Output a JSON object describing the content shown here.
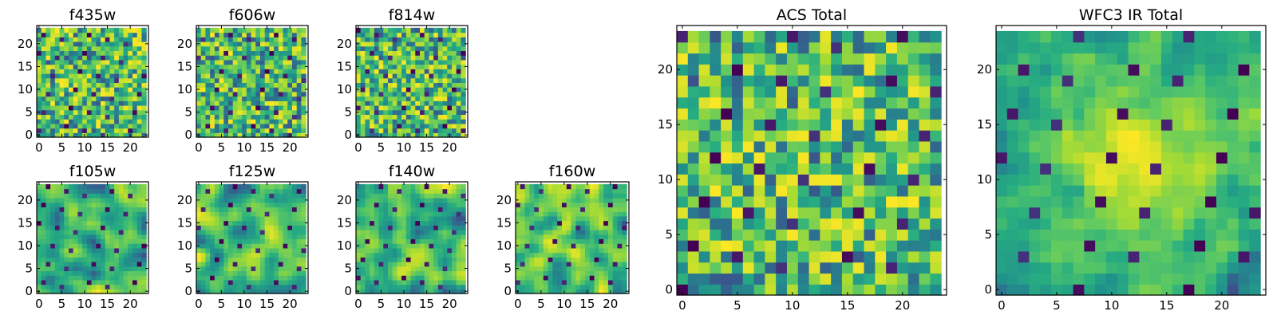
{
  "figure": {
    "colormap": "viridis",
    "colors": {
      "low": "#440154",
      "mid": "#21918c",
      "high": "#fde725",
      "frame": "#000000",
      "background": "#ffffff"
    },
    "panels": [
      {
        "id": "f435w",
        "title": "f435w",
        "grid": 24,
        "seed": 11,
        "smooth": 0,
        "center_bright": 0,
        "xticks": [
          "0",
          "5",
          "10",
          "15",
          "20"
        ],
        "yticks": [
          "0",
          "5",
          "10",
          "15",
          "20"
        ]
      },
      {
        "id": "f606w",
        "title": "f606w",
        "grid": 24,
        "seed": 23,
        "smooth": 0,
        "center_bright": 0,
        "xticks": [
          "0",
          "5",
          "10",
          "15",
          "20"
        ],
        "yticks": [
          "0",
          "5",
          "10",
          "15",
          "20"
        ]
      },
      {
        "id": "f814w",
        "title": "f814w",
        "grid": 24,
        "seed": 37,
        "smooth": 0,
        "center_bright": 0,
        "xticks": [
          "0",
          "5",
          "10",
          "15",
          "20"
        ],
        "yticks": [
          "0",
          "5",
          "10",
          "15",
          "20"
        ]
      },
      {
        "id": "f105w",
        "title": "f105w",
        "grid": 24,
        "seed": 41,
        "smooth": 2,
        "center_bright": 0,
        "xticks": [
          "0",
          "5",
          "10",
          "15",
          "20"
        ],
        "yticks": [
          "0",
          "5",
          "10",
          "15",
          "20"
        ]
      },
      {
        "id": "f125w",
        "title": "f125w",
        "grid": 24,
        "seed": 53,
        "smooth": 2,
        "center_bright": 0,
        "xticks": [
          "0",
          "5",
          "10",
          "15",
          "20"
        ],
        "yticks": [
          "0",
          "5",
          "10",
          "15",
          "20"
        ]
      },
      {
        "id": "f140w",
        "title": "f140w",
        "grid": 24,
        "seed": 67,
        "smooth": 2,
        "center_bright": 0,
        "xticks": [
          "0",
          "5",
          "10",
          "15",
          "20"
        ],
        "yticks": [
          "0",
          "5",
          "10",
          "15",
          "20"
        ]
      },
      {
        "id": "f160w",
        "title": "f160w",
        "grid": 24,
        "seed": 79,
        "smooth": 2,
        "center_bright": 0,
        "xticks": [
          "0",
          "5",
          "10",
          "15",
          "20"
        ],
        "yticks": [
          "0",
          "5",
          "10",
          "15",
          "20"
        ]
      },
      {
        "id": "acs-total",
        "title": "ACS Total",
        "grid": 24,
        "seed": 97,
        "smooth": 0,
        "center_bright": 0,
        "xticks": [
          "0",
          "5",
          "10",
          "15",
          "20"
        ],
        "yticks": [
          "0",
          "5",
          "10",
          "15",
          "20"
        ]
      },
      {
        "id": "wfc3-ir-total",
        "title": "WFC3 IR Total",
        "grid": 24,
        "seed": 131,
        "smooth": 1,
        "center_bright": 0.5,
        "xticks": [
          "0",
          "5",
          "10",
          "15",
          "20"
        ],
        "yticks": [
          "0",
          "5",
          "10",
          "15",
          "20"
        ]
      }
    ]
  },
  "chart_data": [
    {
      "type": "heatmap",
      "title": "f435w",
      "x_range": [
        0,
        24
      ],
      "y_range": [
        0,
        24
      ],
      "x_ticks": [
        0,
        5,
        10,
        15,
        20
      ],
      "y_ticks": [
        0,
        5,
        10,
        15,
        20
      ],
      "colormap": "viridis",
      "xlabel": "",
      "ylabel": ""
    },
    {
      "type": "heatmap",
      "title": "f606w",
      "x_range": [
        0,
        24
      ],
      "y_range": [
        0,
        24
      ],
      "x_ticks": [
        0,
        5,
        10,
        15,
        20
      ],
      "y_ticks": [
        0,
        5,
        10,
        15,
        20
      ],
      "colormap": "viridis",
      "xlabel": "",
      "ylabel": ""
    },
    {
      "type": "heatmap",
      "title": "f814w",
      "x_range": [
        0,
        24
      ],
      "y_range": [
        0,
        24
      ],
      "x_ticks": [
        0,
        5,
        10,
        15,
        20
      ],
      "y_ticks": [
        0,
        5,
        10,
        15,
        20
      ],
      "colormap": "viridis",
      "xlabel": "",
      "ylabel": ""
    },
    {
      "type": "heatmap",
      "title": "f105w",
      "x_range": [
        0,
        24
      ],
      "y_range": [
        0,
        24
      ],
      "x_ticks": [
        0,
        5,
        10,
        15,
        20
      ],
      "y_ticks": [
        0,
        5,
        10,
        15,
        20
      ],
      "colormap": "viridis",
      "xlabel": "",
      "ylabel": ""
    },
    {
      "type": "heatmap",
      "title": "f125w",
      "x_range": [
        0,
        24
      ],
      "y_range": [
        0,
        24
      ],
      "x_ticks": [
        0,
        5,
        10,
        15,
        20
      ],
      "y_ticks": [
        0,
        5,
        10,
        15,
        20
      ],
      "colormap": "viridis",
      "xlabel": "",
      "ylabel": ""
    },
    {
      "type": "heatmap",
      "title": "f140w",
      "x_range": [
        0,
        24
      ],
      "y_range": [
        0,
        24
      ],
      "x_ticks": [
        0,
        5,
        10,
        15,
        20
      ],
      "y_ticks": [
        0,
        5,
        10,
        15,
        20
      ],
      "colormap": "viridis",
      "xlabel": "",
      "ylabel": ""
    },
    {
      "type": "heatmap",
      "title": "f160w",
      "x_range": [
        0,
        24
      ],
      "y_range": [
        0,
        24
      ],
      "x_ticks": [
        0,
        5,
        10,
        15,
        20
      ],
      "y_ticks": [
        0,
        5,
        10,
        15,
        20
      ],
      "colormap": "viridis",
      "xlabel": "",
      "ylabel": ""
    },
    {
      "type": "heatmap",
      "title": "ACS Total",
      "x_range": [
        0,
        24
      ],
      "y_range": [
        0,
        24
      ],
      "x_ticks": [
        0,
        5,
        10,
        15,
        20
      ],
      "y_ticks": [
        0,
        5,
        10,
        15,
        20
      ],
      "colormap": "viridis",
      "xlabel": "",
      "ylabel": ""
    },
    {
      "type": "heatmap",
      "title": "WFC3 IR Total",
      "x_range": [
        0,
        24
      ],
      "y_range": [
        0,
        24
      ],
      "x_ticks": [
        0,
        5,
        10,
        15,
        20
      ],
      "y_ticks": [
        0,
        5,
        10,
        15,
        20
      ],
      "colormap": "viridis",
      "xlabel": "",
      "ylabel": ""
    }
  ]
}
